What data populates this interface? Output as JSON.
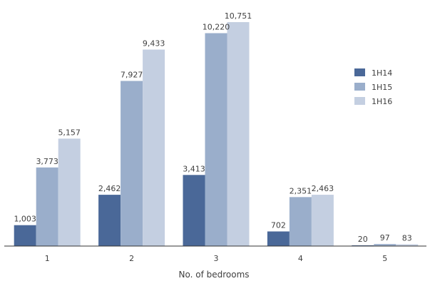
{
  "chart_data": {
    "type": "bar",
    "title": "",
    "xlabel": "No. of bedrooms",
    "ylabel": "",
    "categories": [
      "1",
      "2",
      "3",
      "4",
      "5"
    ],
    "series": [
      {
        "name": "1H14",
        "values": [
          1003,
          2462,
          3413,
          702,
          20
        ],
        "labels": [
          "1,003",
          "2,462",
          "3,413",
          "702",
          "20"
        ],
        "color": "#4a6898"
      },
      {
        "name": "1H15",
        "values": [
          3773,
          7927,
          10220,
          2351,
          97
        ],
        "labels": [
          "3,773",
          "7,927",
          "10,220",
          "2,351",
          "97"
        ],
        "color": "#9aaecb"
      },
      {
        "name": "1H16",
        "values": [
          5157,
          9433,
          10751,
          2463,
          83
        ],
        "labels": [
          "5,157",
          "9,433",
          "10,751",
          "2,463",
          "83"
        ],
        "color": "#c4cfe1"
      }
    ],
    "ylim": [
      0,
      11000
    ],
    "grid": false,
    "legend_position": "right"
  }
}
